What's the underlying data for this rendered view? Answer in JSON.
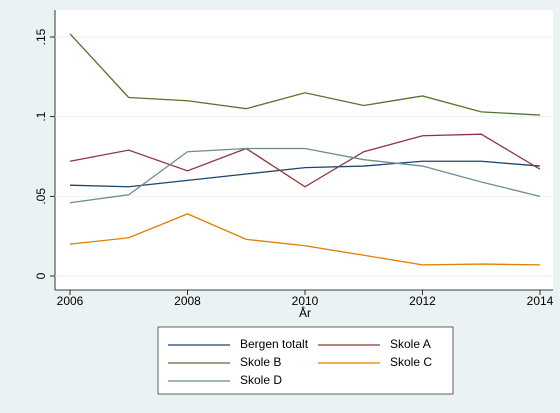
{
  "chart_data": {
    "type": "line",
    "x": [
      2006,
      2007,
      2008,
      2009,
      2010,
      2011,
      2012,
      2013,
      2014
    ],
    "x_label": "År",
    "xlim": [
      2006,
      2014
    ],
    "xticks": [
      2006,
      2008,
      2010,
      2012,
      2014
    ],
    "ylim": [
      0,
      0.15
    ],
    "yticks": [
      0,
      {
        "value": 0.05,
        "label": ".05"
      },
      {
        "value": 0.1,
        "label": ".1"
      },
      {
        "value": 0.15,
        "label": ".15"
      }
    ],
    "grid": true,
    "legend": "bottom",
    "series": [
      {
        "name": "Bergen totalt",
        "color": "#1a476f",
        "values": [
          0.057,
          0.056,
          0.06,
          0.064,
          0.068,
          0.069,
          0.072,
          0.072,
          0.069
        ]
      },
      {
        "name": "Skole A",
        "color": "#90353b",
        "values": [
          0.072,
          0.079,
          0.066,
          0.08,
          0.056,
          0.078,
          0.088,
          0.089,
          0.067
        ]
      },
      {
        "name": "Skole B",
        "color": "#55752f",
        "values": [
          0.152,
          0.112,
          0.11,
          0.105,
          0.115,
          0.107,
          0.113,
          0.103,
          0.101
        ]
      },
      {
        "name": "Skole C",
        "color": "#e37e00",
        "values": [
          0.02,
          0.024,
          0.039,
          0.023,
          0.019,
          0.013,
          0.007,
          0.0075,
          0.007
        ]
      },
      {
        "name": "Skole D",
        "color": "#6e8e84",
        "values": [
          0.046,
          0.051,
          0.078,
          0.08,
          0.08,
          0.073,
          0.069,
          0.059,
          0.05
        ]
      }
    ]
  }
}
